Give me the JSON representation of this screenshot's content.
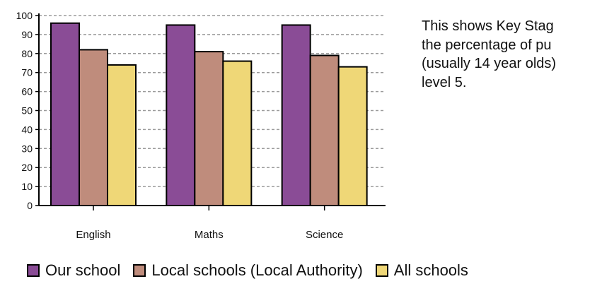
{
  "chart_data": {
    "type": "bar",
    "categories": [
      "English",
      "Maths",
      "Science"
    ],
    "series": [
      {
        "name": "Our school",
        "values": [
          96,
          95,
          95
        ],
        "color": "#8a4c96"
      },
      {
        "name": "Local schools (Local Authority)",
        "values": [
          82,
          81,
          79
        ],
        "color": "#bf8c7c"
      },
      {
        "name": "All schools",
        "values": [
          74,
          76,
          73
        ],
        "color": "#efd777"
      }
    ],
    "ylim": [
      0,
      100
    ],
    "yticks": [
      0,
      10,
      20,
      30,
      40,
      50,
      60,
      70,
      80,
      90,
      100
    ],
    "yticks_labels": [
      "0",
      "10",
      "20",
      "30",
      "40",
      "50",
      "60",
      "70",
      "80",
      "90",
      "100"
    ],
    "grid": true,
    "legend_position": "bottom",
    "title": "",
    "xlabel": "",
    "ylabel": ""
  },
  "description": {
    "lines": [
      "This shows Key Stag",
      "the percentage of pu",
      "(usually 14 year olds)",
      "level 5."
    ]
  },
  "legend": {
    "items": [
      {
        "label": "Our school",
        "color": "#8a4c96"
      },
      {
        "label": "Local schools (Local Authority)",
        "color": "#bf8c7c"
      },
      {
        "label": "All schools",
        "color": "#efd777"
      }
    ]
  }
}
